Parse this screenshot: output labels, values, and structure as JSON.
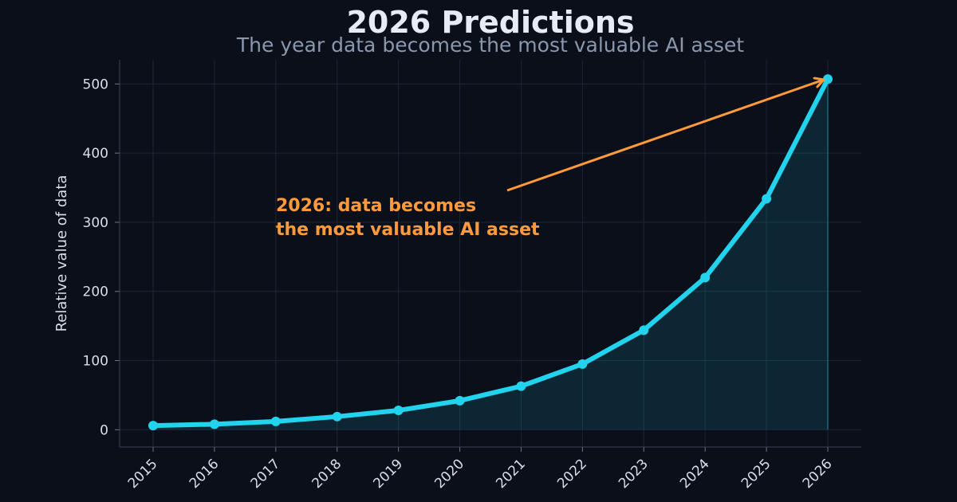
{
  "chart_data": {
    "type": "line",
    "title": "2026 Predictions",
    "subtitle": "The year data becomes the most valuable AI asset",
    "xlabel": "",
    "ylabel": "Relative value of data",
    "categories": [
      "2015",
      "2016",
      "2017",
      "2018",
      "2019",
      "2020",
      "2021",
      "2022",
      "2023",
      "2024",
      "2025",
      "2026"
    ],
    "series": [
      {
        "values": [
          6,
          8,
          12,
          19,
          28,
          42,
          63,
          95,
          144,
          220,
          334,
          507
        ]
      }
    ],
    "ylim": [
      -25,
      535
    ],
    "yticks": [
      "0",
      "100",
      "200",
      "300",
      "400",
      "500"
    ],
    "grid": true,
    "legend": "none",
    "fill_under_line": true,
    "annotation": {
      "lines": [
        "2026: data becomes",
        "the most valuable AI asset"
      ],
      "points_to": "2026"
    },
    "colors": {
      "background": "#0a0f1a",
      "line": "#22d3ee",
      "annotation": "#ff9a3c",
      "grid": "#1c2536",
      "text": "#d8deea"
    }
  }
}
